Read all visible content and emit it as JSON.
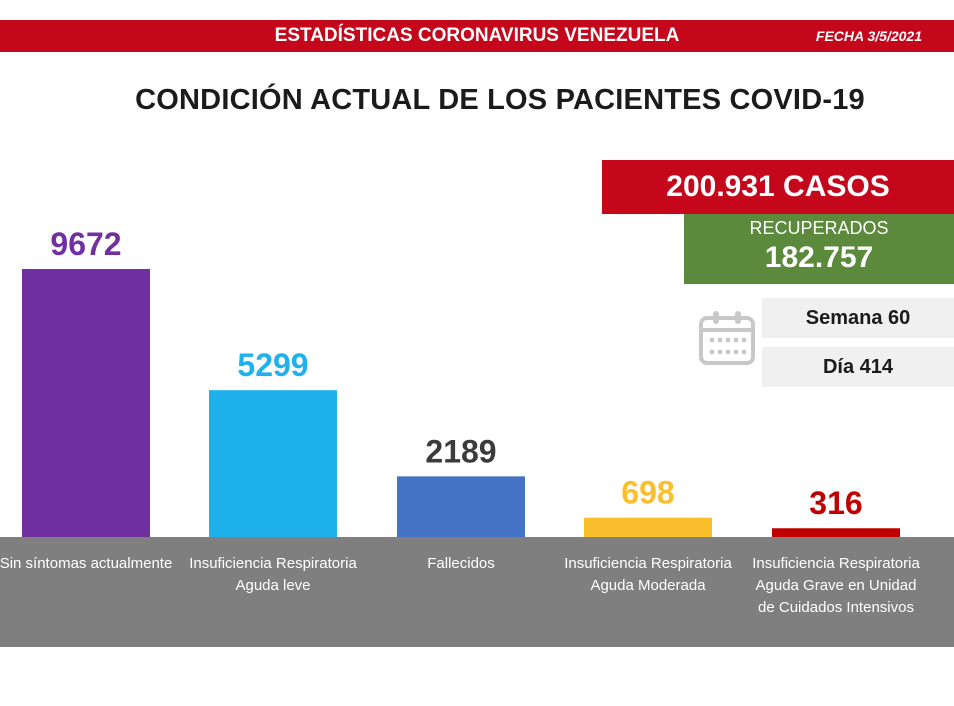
{
  "header": {
    "title": "ESTADÍSTICAS CORONAVIRUS VENEZUELA",
    "date": "FECHA 3/5/2021"
  },
  "main_title": "CONDICIÓN ACTUAL DE LOS PACIENTES COVID-19",
  "summary": {
    "cases": "200.931 CASOS",
    "recovered_label": "RECUPERADOS",
    "recovered_value": "182.757",
    "week": "Semana 60",
    "day": "Día 414"
  },
  "icons": {
    "calendar": "calendar-icon"
  },
  "colors": {
    "header_red": "#c5071c",
    "recovered_green": "#5b8a3c",
    "category_band": "#7f7f7f"
  },
  "chart_data": {
    "type": "bar",
    "categories": [
      "Sin síntomas actualmente",
      "Insuficiencia Respiratoria Aguda leve",
      "Fallecidos",
      "Insuficiencia Respiratoria Aguda Moderada",
      "Insuficiencia Respiratoria Aguda Grave en Unidad de Cuidados Intensivos"
    ],
    "values": [
      9672,
      5299,
      2189,
      698,
      316
    ],
    "value_labels": [
      "9672",
      "5299",
      "2189",
      "698",
      "316"
    ],
    "colors": [
      "#7030a0",
      "#1fb1ec",
      "#4472c4",
      "#fbbf2d",
      "#c00000"
    ],
    "label_colors": [
      "#7030a0",
      "#1fb1ec",
      "#3b3b3b",
      "#fbbf2d",
      "#c00000"
    ],
    "ylim": [
      0,
      10000
    ],
    "grid": false
  }
}
